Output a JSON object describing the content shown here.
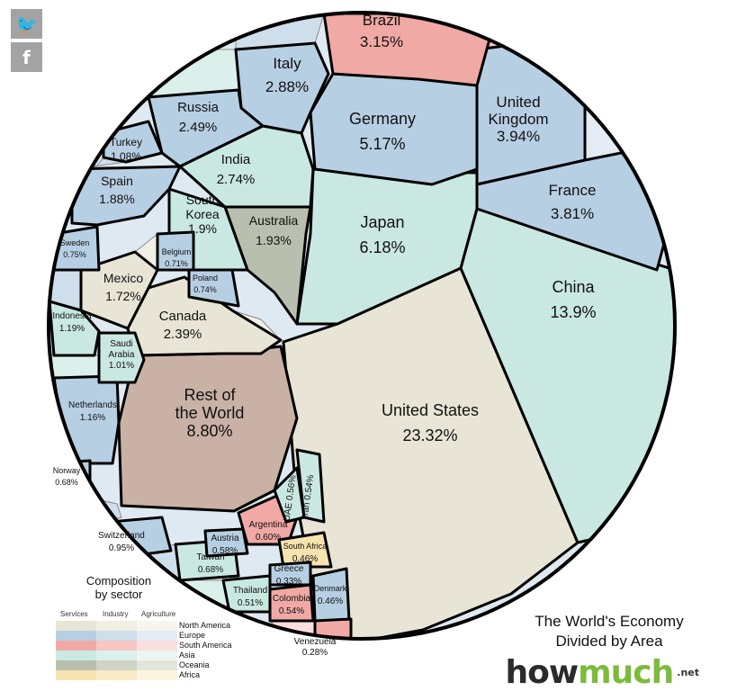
{
  "share": {
    "twitter_icon": "twitter-icon",
    "twitter_glyph": "🐦",
    "facebook_icon": "facebook-icon",
    "facebook_glyph": "f"
  },
  "regions": {
    "north_america": "#e9e5d6",
    "europe": "#b7cfe3",
    "south_america": "#f1a9a5",
    "asia": "#c9e8e1",
    "oceania": "#b8bfae",
    "africa": "#f7e3ae",
    "rest": "#c9b1a6"
  },
  "countries": [
    {
      "key": "us",
      "name": "United States",
      "value": "23.32%",
      "region": "north_america"
    },
    {
      "key": "china",
      "name": "China",
      "value": "13.9%",
      "region": "asia"
    },
    {
      "key": "rest",
      "name": "Rest of the World",
      "value": "8.80%",
      "region": "rest"
    },
    {
      "key": "japan",
      "name": "Japan",
      "value": "6.18%",
      "region": "asia"
    },
    {
      "key": "germany",
      "name": "Germany",
      "value": "5.17%",
      "region": "europe"
    },
    {
      "key": "uk",
      "name": "United Kingdom",
      "value": "3.94%",
      "region": "europe"
    },
    {
      "key": "france",
      "name": "France",
      "value": "3.81%",
      "region": "europe"
    },
    {
      "key": "brazil",
      "name": "Brazil",
      "value": "3.15%",
      "region": "south_america"
    },
    {
      "key": "italy",
      "name": "Italy",
      "value": "2.88%",
      "region": "europe"
    },
    {
      "key": "india",
      "name": "India",
      "value": "2.74%",
      "region": "asia"
    },
    {
      "key": "russia",
      "name": "Russia",
      "value": "2.49%",
      "region": "europe"
    },
    {
      "key": "canada",
      "name": "Canada",
      "value": "2.39%",
      "region": "north_america"
    },
    {
      "key": "australia",
      "name": "Australia",
      "value": "1.93%",
      "region": "oceania"
    },
    {
      "key": "korea",
      "name": "South Korea",
      "value": "1.9%",
      "region": "asia"
    },
    {
      "key": "spain",
      "name": "Spain",
      "value": "1.88%",
      "region": "europe"
    },
    {
      "key": "mexico",
      "name": "Mexico",
      "value": "1.72%",
      "region": "north_america"
    },
    {
      "key": "indonesia",
      "name": "Indonesia",
      "value": "1.19%",
      "region": "asia"
    },
    {
      "key": "netherlands",
      "name": "Netherlands",
      "value": "1.16%",
      "region": "europe"
    },
    {
      "key": "turkey",
      "name": "Turkey",
      "value": "1.08%",
      "region": "europe"
    },
    {
      "key": "saudi",
      "name": "Saudi Arabia",
      "value": "1.01%",
      "region": "asia"
    },
    {
      "key": "switzerland",
      "name": "Switzerland",
      "value": "0.95%",
      "region": "europe"
    },
    {
      "key": "sweden",
      "name": "Sweden",
      "value": "0.75%",
      "region": "europe"
    },
    {
      "key": "poland",
      "name": "Poland",
      "value": "0.74%",
      "region": "europe"
    },
    {
      "key": "belgium",
      "name": "Belgium",
      "value": "0.71%",
      "region": "europe"
    },
    {
      "key": "norway",
      "name": "Norway",
      "value": "0.68%",
      "region": "europe"
    },
    {
      "key": "taiwan",
      "name": "Taiwan",
      "value": "0.68%",
      "region": "asia"
    },
    {
      "key": "argentina",
      "name": "Argentina",
      "value": "0.60%",
      "region": "south_america"
    },
    {
      "key": "austria",
      "name": "Austria",
      "value": "0.58%",
      "region": "europe"
    },
    {
      "key": "uae",
      "name": "UAE",
      "value": "0.56%",
      "region": "asia"
    },
    {
      "key": "iran",
      "name": "Iran",
      "value": "0.54%",
      "region": "asia"
    },
    {
      "key": "colombia",
      "name": "Colombia",
      "value": "0.54%",
      "region": "south_america"
    },
    {
      "key": "thailand",
      "name": "Thailand",
      "value": "0.51%",
      "region": "asia"
    },
    {
      "key": "southafrica",
      "name": "South Africa",
      "value": "0.46%",
      "region": "africa"
    },
    {
      "key": "denmark",
      "name": "Denmark",
      "value": "0.46%",
      "region": "europe"
    },
    {
      "key": "greece",
      "name": "Greece",
      "value": "0.33%",
      "region": "europe"
    },
    {
      "key": "venezuela",
      "name": "Venezuela",
      "value": "0.28%",
      "region": "south_america"
    }
  ],
  "legend": {
    "title_line1": "Composition",
    "title_line2": "by sector",
    "col_services": "Services",
    "col_industry": "Industry",
    "col_agriculture": "Agriculture",
    "rows": [
      {
        "label": "North America",
        "colors": [
          "#e9e5d6",
          "#f1eee4",
          "#f7f5ef"
        ]
      },
      {
        "label": "Europe",
        "colors": [
          "#b7cfe3",
          "#cfdeeb",
          "#e3ecf4"
        ]
      },
      {
        "label": "South America",
        "colors": [
          "#f1a9a5",
          "#f6c6c3",
          "#fadedc"
        ]
      },
      {
        "label": "Asia",
        "colors": [
          "#c9e8e1",
          "#dcf0eb",
          "#ebf6f3"
        ]
      },
      {
        "label": "Oceania",
        "colors": [
          "#b8bfae",
          "#cfd4c7",
          "#e2e5dc"
        ]
      },
      {
        "label": "Africa",
        "colors": [
          "#f7e3ae",
          "#f9ebc6",
          "#fcf4de"
        ]
      }
    ]
  },
  "branding": {
    "title_line1": "The World's Economy",
    "title_line2": "Divided by Area",
    "logo_how": "how",
    "logo_much": "much",
    "logo_net": ".net"
  }
}
